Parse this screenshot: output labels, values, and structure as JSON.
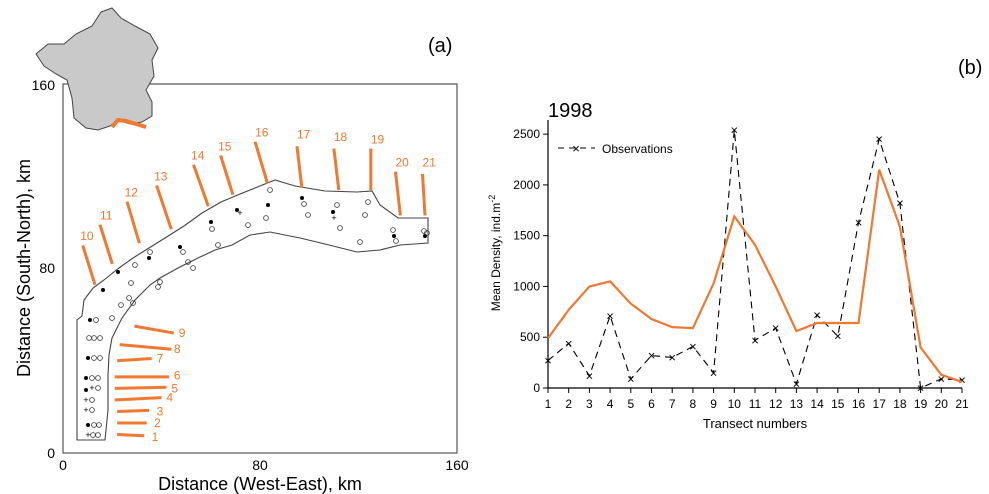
{
  "colors": {
    "orange": "#F07830",
    "france_fill": "#C9C9C9",
    "ink": "#000000",
    "frame": "#555555"
  },
  "panel_a": {
    "label": "(a)",
    "xlabel": "Distance (West-East), km",
    "ylabel": "Distance (South-North), km",
    "xticks": [
      "0",
      "80",
      "160"
    ],
    "yticks": [
      "0",
      "80",
      "160"
    ],
    "xlim": [
      0,
      160
    ],
    "ylim": [
      0,
      160
    ],
    "transects": [
      {
        "label": "1",
        "line": [
          [
            22,
            8
          ],
          [
            33,
            7.5
          ]
        ],
        "text": [
          36,
          7
        ]
      },
      {
        "label": "2",
        "line": [
          [
            22,
            13
          ],
          [
            34,
            13
          ]
        ],
        "text": [
          37,
          13
        ]
      },
      {
        "label": "3",
        "line": [
          [
            22,
            18
          ],
          [
            35,
            18.5
          ]
        ],
        "text": [
          38,
          18
        ]
      },
      {
        "label": "4",
        "line": [
          [
            21,
            23
          ],
          [
            40,
            24
          ]
        ],
        "text": [
          42,
          24
        ]
      },
      {
        "label": "5",
        "line": [
          [
            21,
            28
          ],
          [
            42,
            28.5
          ]
        ],
        "text": [
          44,
          28
        ]
      },
      {
        "label": "6",
        "line": [
          [
            21,
            33
          ],
          [
            43,
            33
          ]
        ],
        "text": [
          45,
          33.5
        ]
      },
      {
        "label": "7",
        "line": [
          [
            22,
            40
          ],
          [
            36,
            41
          ]
        ],
        "text": [
          38,
          41
        ]
      },
      {
        "label": "8",
        "line": [
          [
            23,
            47
          ],
          [
            44,
            45
          ]
        ],
        "text": [
          45,
          45
        ]
      },
      {
        "label": "9",
        "line": [
          [
            29,
            55
          ],
          [
            45,
            52
          ]
        ],
        "text": [
          47,
          52
        ]
      },
      {
        "label": "10",
        "line": [
          [
            13,
            73
          ],
          [
            8,
            90
          ]
        ],
        "text": [
          7,
          94
        ]
      },
      {
        "label": "11",
        "line": [
          [
            20,
            82
          ],
          [
            15,
            99
          ]
        ],
        "text": [
          15,
          103
        ]
      },
      {
        "label": "12",
        "line": [
          [
            31,
            91
          ],
          [
            26,
            109
          ]
        ],
        "text": [
          25,
          113
        ]
      },
      {
        "label": "13",
        "line": [
          [
            44,
            97
          ],
          [
            38,
            116
          ]
        ],
        "text": [
          37,
          120
        ]
      },
      {
        "label": "14",
        "line": [
          [
            59,
            107
          ],
          [
            53,
            125
          ]
        ],
        "text": [
          52,
          129
        ]
      },
      {
        "label": "15",
        "line": [
          [
            69,
            112
          ],
          [
            64,
            129
          ]
        ],
        "text": [
          63,
          133
        ]
      },
      {
        "label": "16",
        "line": [
          [
            83,
            117
          ],
          [
            78,
            135
          ]
        ],
        "text": [
          78,
          139
        ]
      },
      {
        "label": "17",
        "line": [
          [
            97,
            115
          ],
          [
            95,
            133
          ]
        ],
        "text": [
          95,
          138
        ]
      },
      {
        "label": "18",
        "line": [
          [
            112,
            114
          ],
          [
            110,
            132
          ]
        ],
        "text": [
          110,
          137
        ]
      },
      {
        "label": "19",
        "line": [
          [
            125,
            114
          ],
          [
            125,
            132
          ]
        ],
        "text": [
          125,
          136
        ]
      },
      {
        "label": "20",
        "line": [
          [
            137,
            103
          ],
          [
            135,
            122
          ]
        ],
        "text": [
          135,
          126
        ]
      },
      {
        "label": "21",
        "line": [
          [
            147,
            103
          ],
          [
            146,
            121
          ]
        ],
        "text": [
          146,
          126
        ]
      }
    ]
  },
  "panel_b": {
    "label": "(b)",
    "chart_data": {
      "type": "line",
      "title": "1998",
      "xlabel": "Transect numbers",
      "ylabel": "Mean Density, ind.m",
      "ylabel_superscript": "-2",
      "x": [
        1,
        2,
        3,
        4,
        5,
        6,
        7,
        8,
        9,
        10,
        11,
        12,
        13,
        14,
        15,
        16,
        17,
        18,
        19,
        20,
        21
      ],
      "xlim": [
        1,
        21
      ],
      "ylim": [
        0,
        2600
      ],
      "yticks": [
        0,
        500,
        1000,
        1500,
        2000,
        2500
      ],
      "grid": false,
      "legend": "top-left",
      "series": [
        {
          "name": "Observations",
          "style": "dashed-cross",
          "color": "#000000",
          "values": [
            270,
            440,
            120,
            710,
            90,
            320,
            300,
            410,
            150,
            2540,
            470,
            590,
            40,
            720,
            510,
            1630,
            2450,
            1820,
            0,
            90,
            80
          ]
        },
        {
          "style": "solid",
          "color": "#F07830",
          "values": [
            490,
            770,
            1000,
            1050,
            830,
            680,
            600,
            590,
            1030,
            1690,
            1410,
            1000,
            560,
            640,
            640,
            640,
            2150,
            1590,
            400,
            130,
            60
          ]
        }
      ]
    }
  }
}
